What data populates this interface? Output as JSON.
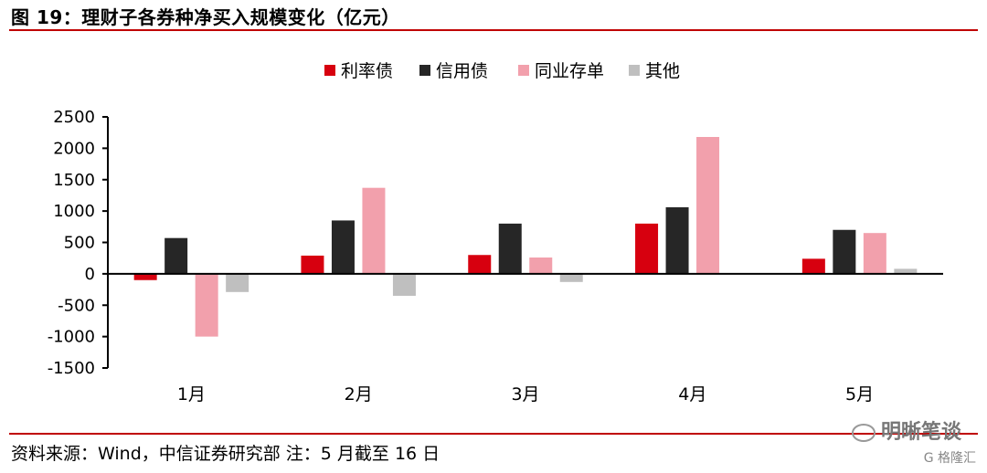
{
  "header": {
    "title": "图 19：理财子各券种净买入规模变化（亿元）"
  },
  "footer": {
    "source": "资料来源：Wind，中信证券研究部 注：5 月截至 16 日",
    "watermark": "明晰笔谈",
    "watermark2": "G 格隆汇"
  },
  "chart_data": {
    "type": "bar",
    "categories": [
      "1月",
      "2月",
      "3月",
      "4月",
      "5月"
    ],
    "series": [
      {
        "name": "利率债",
        "color": "#d7000f",
        "values": [
          -100,
          290,
          300,
          800,
          240
        ]
      },
      {
        "name": "信用债",
        "color": "#262626",
        "values": [
          570,
          850,
          800,
          1060,
          700
        ]
      },
      {
        "name": "同业存单",
        "color": "#f2a0ac",
        "values": [
          -1000,
          1370,
          260,
          2180,
          650
        ]
      },
      {
        "name": "其他",
        "color": "#bfbfbf",
        "values": [
          -290,
          -350,
          -130,
          0,
          80
        ]
      }
    ],
    "yticks": [
      "2500",
      "2000",
      "1500",
      "1000",
      "500",
      "0",
      "-500",
      "-1000",
      "-1500"
    ],
    "ylim": [
      -1500,
      2500
    ],
    "legend_position": "top"
  }
}
